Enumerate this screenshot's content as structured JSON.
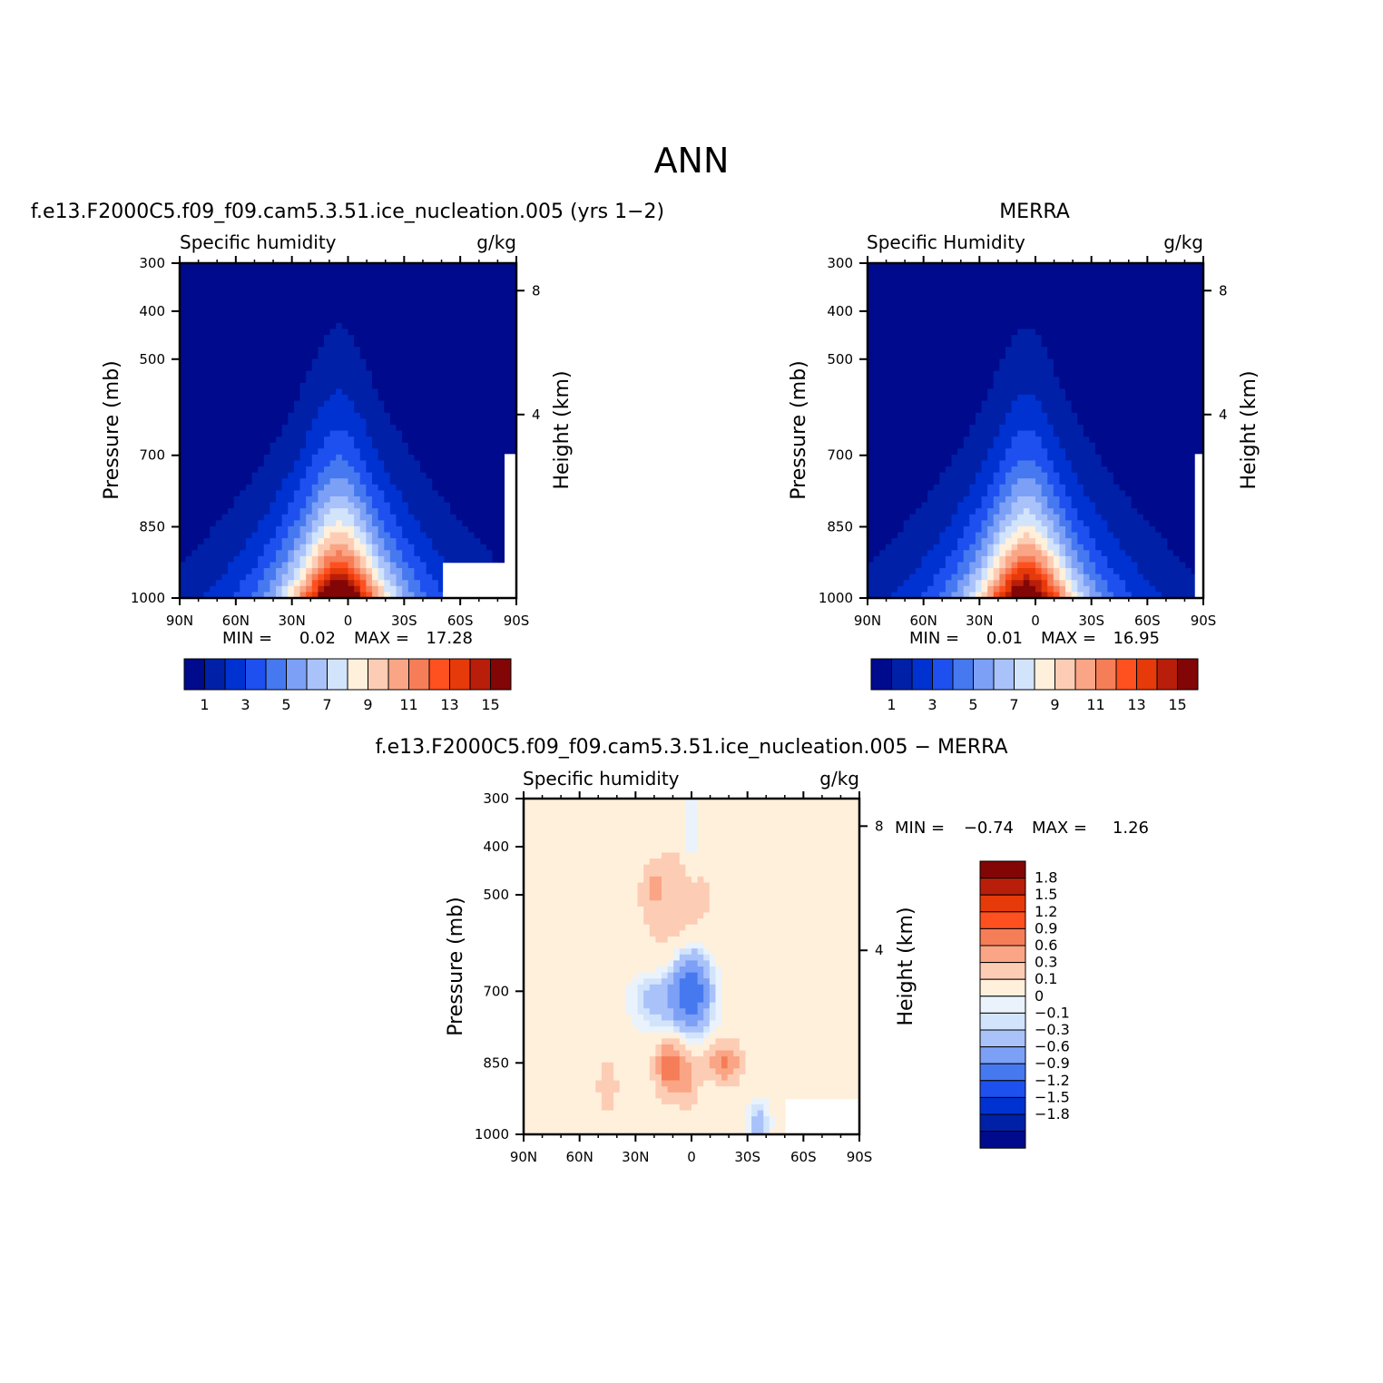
{
  "main_title": "ANN",
  "colors": {
    "seq": [
      "#000a8c",
      "#0020a8",
      "#0032d2",
      "#1e50f0",
      "#4678f0",
      "#7ca0f5",
      "#aac2fa",
      "#d2e4fc",
      "#fff0dc",
      "#fccdb4",
      "#faa585",
      "#f57d58",
      "#ff5020",
      "#e63a0a",
      "#b91e0a",
      "#820606"
    ],
    "div": [
      "#000a8c",
      "#0020a8",
      "#0032d2",
      "#1e50f0",
      "#4678f0",
      "#7ca0f5",
      "#aac2fa",
      "#d2e4fc",
      "#eaf2fc",
      "#fff0dc",
      "#fccdb4",
      "#faa585",
      "#f57d58",
      "#ff5020",
      "#e63a0a",
      "#b91e0a",
      "#820606"
    ],
    "axis": "#000000",
    "background": "#ffffff"
  },
  "panels": {
    "model": {
      "title": "f.e13.F2000C5.f09_f09.cam5.3.51.ice_nucleation.005 (yrs 1−2)",
      "min_label": "MIN =",
      "min_value": "0.02",
      "max_label": "MAX =",
      "max_value": "17.28"
    },
    "obs": {
      "title": "MERRA",
      "min_label": "MIN =",
      "min_value": "0.01",
      "max_label": "MAX =",
      "max_value": "16.95"
    },
    "diff": {
      "title": "f.e13.F2000C5.f09_f09.cam5.3.51.ice_nucleation.005 − MERRA",
      "min_label": "MIN =",
      "min_value": "−0.74",
      "max_label": "MAX =",
      "max_value": "1.26"
    }
  },
  "chart_data": [
    {
      "id": "model",
      "type": "heatmap",
      "title": "f.e13.F2000C5.f09_f09.cam5.3.51.ice_nucleation.005 (yrs 1−2)",
      "left_label": "Specific humidity",
      "right_label": "g/kg",
      "xlabel": "",
      "ylabel": "Pressure (mb)",
      "y2label": "Height (km)",
      "x_ticks": [
        "90N",
        "60N",
        "30N",
        "0",
        "30S",
        "60S",
        "90S"
      ],
      "y_ticks": [
        "300",
        "400",
        "500",
        "700",
        "850",
        "1000"
      ],
      "y2_ticks": [
        "8",
        "4"
      ],
      "xlim": [
        90,
        -90
      ],
      "ylim": [
        1000,
        300
      ],
      "peak": 17.28,
      "peak_lat": 5,
      "colorbar_labels": [
        "1",
        "3",
        "5",
        "7",
        "9",
        "11",
        "13",
        "15"
      ],
      "colorbar_levels": [
        1,
        2,
        3,
        4,
        5,
        6,
        7,
        8,
        9,
        10,
        11,
        12,
        13,
        14,
        15
      ]
    },
    {
      "id": "obs",
      "type": "heatmap",
      "title": "MERRA",
      "left_label": "Specific Humidity",
      "right_label": "g/kg",
      "xlabel": "",
      "ylabel": "Pressure (mb)",
      "y2label": "Height (km)",
      "x_ticks": [
        "90N",
        "60N",
        "30N",
        "0",
        "30S",
        "60S",
        "90S"
      ],
      "y_ticks": [
        "300",
        "400",
        "500",
        "700",
        "850",
        "1000"
      ],
      "y2_ticks": [
        "8",
        "4"
      ],
      "xlim": [
        90,
        -90
      ],
      "ylim": [
        1000,
        300
      ],
      "peak": 16.95,
      "peak_lat": 5,
      "colorbar_labels": [
        "1",
        "3",
        "5",
        "7",
        "9",
        "11",
        "13",
        "15"
      ],
      "colorbar_levels": [
        1,
        2,
        3,
        4,
        5,
        6,
        7,
        8,
        9,
        10,
        11,
        12,
        13,
        14,
        15
      ]
    },
    {
      "id": "diff",
      "type": "heatmap",
      "title": "f.e13.F2000C5.f09_f09.cam5.3.51.ice_nucleation.005 − MERRA",
      "left_label": "Specific humidity",
      "right_label": "g/kg",
      "xlabel": "",
      "ylabel": "Pressure (mb)",
      "y2label": "Height (km)",
      "x_ticks": [
        "90N",
        "60N",
        "30N",
        "0",
        "30S",
        "60S",
        "90S"
      ],
      "y_ticks": [
        "300",
        "400",
        "500",
        "700",
        "850",
        "1000"
      ],
      "y2_ticks": [
        "8",
        "4"
      ],
      "xlim": [
        90,
        -90
      ],
      "ylim": [
        1000,
        300
      ],
      "min": -0.74,
      "max": 1.26,
      "colorbar_labels": [
        "1.8",
        "1.5",
        "1.2",
        "0.9",
        "0.6",
        "0.3",
        "0.1",
        "0",
        "−0.1",
        "−0.3",
        "−0.6",
        "−0.9",
        "−1.2",
        "−1.5",
        "−1.8"
      ],
      "colorbar_levels": [
        -1.8,
        -1.5,
        -1.2,
        -0.9,
        -0.6,
        -0.3,
        -0.1,
        0,
        0.1,
        0.3,
        0.6,
        0.9,
        1.2,
        1.5,
        1.8
      ]
    }
  ]
}
